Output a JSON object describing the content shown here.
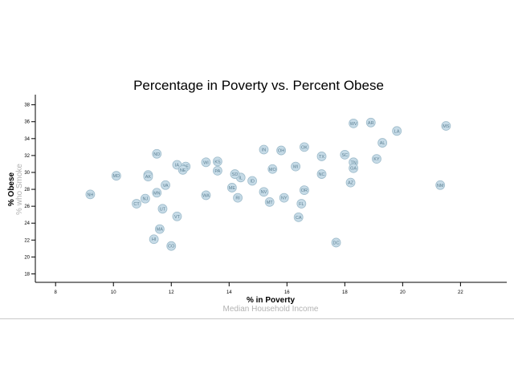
{
  "chart_data": {
    "type": "scatter",
    "title": "Percentage in Poverty vs. Percent Obese",
    "xlabel": "% in Poverty",
    "xlabel_inactive": [
      "Median Household Income"
    ],
    "ylabel": "% Obese",
    "ylabel_inactive": [
      "% who Smoke"
    ],
    "xlim": [
      7.3,
      23.6
    ],
    "ylim": [
      17,
      39.2
    ],
    "x_ticks": [
      8,
      10,
      12,
      14,
      16,
      18,
      20,
      22
    ],
    "y_ticks": [
      18,
      20,
      22,
      24,
      26,
      28,
      30,
      32,
      34,
      36,
      38
    ],
    "grid": false,
    "points": [
      {
        "abbr": "WV",
        "x": 18.3,
        "y": 35.8
      },
      {
        "abbr": "AR",
        "x": 18.9,
        "y": 35.9
      },
      {
        "abbr": "LA",
        "x": 19.8,
        "y": 34.9
      },
      {
        "abbr": "MS",
        "x": 21.5,
        "y": 35.5
      },
      {
        "abbr": "AL",
        "x": 19.3,
        "y": 33.5
      },
      {
        "abbr": "KY",
        "x": 19.1,
        "y": 31.6
      },
      {
        "abbr": "SC",
        "x": 18.0,
        "y": 32.1
      },
      {
        "abbr": "TN",
        "x": 18.3,
        "y": 31.2
      },
      {
        "abbr": "GA",
        "x": 18.3,
        "y": 30.5
      },
      {
        "abbr": "TX",
        "x": 17.2,
        "y": 31.9
      },
      {
        "abbr": "OK",
        "x": 16.6,
        "y": 33.0
      },
      {
        "abbr": "OH",
        "x": 15.8,
        "y": 32.6
      },
      {
        "abbr": "IN",
        "x": 15.2,
        "y": 32.7
      },
      {
        "abbr": "MI",
        "x": 16.3,
        "y": 30.7
      },
      {
        "abbr": "MO",
        "x": 15.5,
        "y": 30.4
      },
      {
        "abbr": "NC",
        "x": 17.2,
        "y": 29.8
      },
      {
        "abbr": "AZ",
        "x": 18.2,
        "y": 28.8
      },
      {
        "abbr": "NM",
        "x": 21.3,
        "y": 28.5
      },
      {
        "abbr": "OR",
        "x": 16.6,
        "y": 27.9
      },
      {
        "abbr": "NY",
        "x": 15.9,
        "y": 27.0
      },
      {
        "abbr": "NV",
        "x": 15.2,
        "y": 27.7
      },
      {
        "abbr": "MT",
        "x": 15.4,
        "y": 26.5
      },
      {
        "abbr": "FL",
        "x": 16.5,
        "y": 26.3
      },
      {
        "abbr": "CA",
        "x": 16.4,
        "y": 24.7
      },
      {
        "abbr": "DC",
        "x": 17.7,
        "y": 21.7
      },
      {
        "abbr": "ID",
        "x": 14.8,
        "y": 29.0
      },
      {
        "abbr": "IL",
        "x": 14.4,
        "y": 29.4
      },
      {
        "abbr": "SD",
        "x": 14.2,
        "y": 29.8
      },
      {
        "abbr": "ME",
        "x": 14.1,
        "y": 28.2
      },
      {
        "abbr": "RI",
        "x": 14.3,
        "y": 27.0
      },
      {
        "abbr": "KS",
        "x": 13.6,
        "y": 31.3
      },
      {
        "abbr": "WI",
        "x": 13.2,
        "y": 31.2
      },
      {
        "abbr": "PA",
        "x": 13.6,
        "y": 30.2
      },
      {
        "abbr": "WA",
        "x": 13.2,
        "y": 27.3
      },
      {
        "abbr": "ND",
        "x": 11.5,
        "y": 32.2
      },
      {
        "abbr": "IA",
        "x": 12.2,
        "y": 30.9
      },
      {
        "abbr": "DE",
        "x": 12.5,
        "y": 30.7
      },
      {
        "abbr": "NE",
        "x": 12.4,
        "y": 30.3
      },
      {
        "abbr": "MD",
        "x": 10.1,
        "y": 29.6
      },
      {
        "abbr": "WY",
        "x": 11.2,
        "y": 29.7
      },
      {
        "abbr": "VA",
        "x": 11.8,
        "y": 28.5
      },
      {
        "abbr": "MN",
        "x": 11.5,
        "y": 27.6
      },
      {
        "abbr": "NJ",
        "x": 11.1,
        "y": 26.9
      },
      {
        "abbr": "CT",
        "x": 10.8,
        "y": 26.3
      },
      {
        "abbr": "UT",
        "x": 11.7,
        "y": 25.7
      },
      {
        "abbr": "VT",
        "x": 12.2,
        "y": 24.8
      },
      {
        "abbr": "MA",
        "x": 11.6,
        "y": 23.3
      },
      {
        "abbr": "HI",
        "x": 11.4,
        "y": 22.1
      },
      {
        "abbr": "CO",
        "x": 12.0,
        "y": 21.3
      },
      {
        "abbr": "NH",
        "x": 9.2,
        "y": 27.4
      },
      {
        "abbr": "AK",
        "x": 11.2,
        "y": 29.5
      }
    ],
    "marker_color": "#c6dbe7",
    "marker_stroke": "#9fbccb",
    "label_color": "#5b7f92",
    "active_label_color": "#000000",
    "inactive_label_color": "#b3b3b3"
  }
}
